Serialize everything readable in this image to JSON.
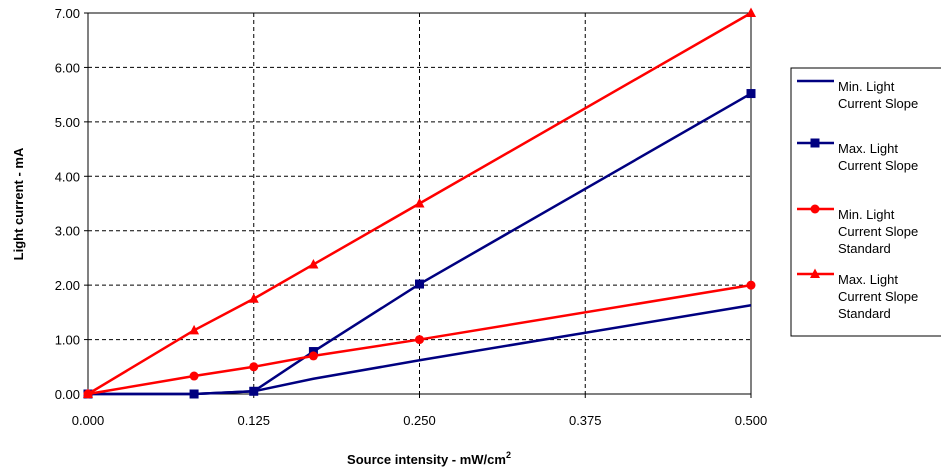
{
  "chart_data": {
    "type": "line",
    "xlabel": "Source intensity - mW/cm",
    "xlabel_superscript": "2",
    "ylabel": "Light current - mA",
    "xlim": [
      0,
      0.5
    ],
    "ylim": [
      0,
      7
    ],
    "x_ticks": [
      "0.000",
      "0.125",
      "0.250",
      "0.375",
      "0.500"
    ],
    "y_ticks": [
      "0.00",
      "1.00",
      "2.00",
      "3.00",
      "4.00",
      "5.00",
      "6.00",
      "7.00"
    ],
    "grid": true,
    "legend_position": "right",
    "series": [
      {
        "name": [
          "Min. Light",
          "Current Slope"
        ],
        "color": "#000080",
        "marker": "none",
        "points": [
          [
            0,
            0
          ],
          [
            0.08,
            0
          ],
          [
            0.125,
            0.05
          ],
          [
            0.17,
            0.28
          ],
          [
            0.25,
            0.62
          ],
          [
            0.5,
            1.63
          ]
        ]
      },
      {
        "name": [
          "Max. Light",
          "Current Slope"
        ],
        "color": "#000080",
        "marker": "square",
        "points": [
          [
            0,
            0
          ],
          [
            0.08,
            0
          ],
          [
            0.125,
            0.05
          ],
          [
            0.17,
            0.78
          ],
          [
            0.25,
            2.02
          ],
          [
            0.5,
            5.52
          ]
        ]
      },
      {
        "name": [
          "Min. Light",
          "Current Slope",
          "Standard"
        ],
        "color": "#ff0000",
        "marker": "circle",
        "points": [
          [
            0,
            0
          ],
          [
            0.08,
            0.33
          ],
          [
            0.125,
            0.5
          ],
          [
            0.17,
            0.7
          ],
          [
            0.25,
            1.0
          ],
          [
            0.5,
            2.0
          ]
        ]
      },
      {
        "name": [
          "Max. Light",
          "Current Slope",
          "Standard"
        ],
        "color": "#ff0000",
        "marker": "triangle",
        "points": [
          [
            0,
            0
          ],
          [
            0.08,
            1.17
          ],
          [
            0.125,
            1.75
          ],
          [
            0.17,
            2.38
          ],
          [
            0.25,
            3.5
          ],
          [
            0.5,
            7.0
          ]
        ]
      }
    ]
  }
}
